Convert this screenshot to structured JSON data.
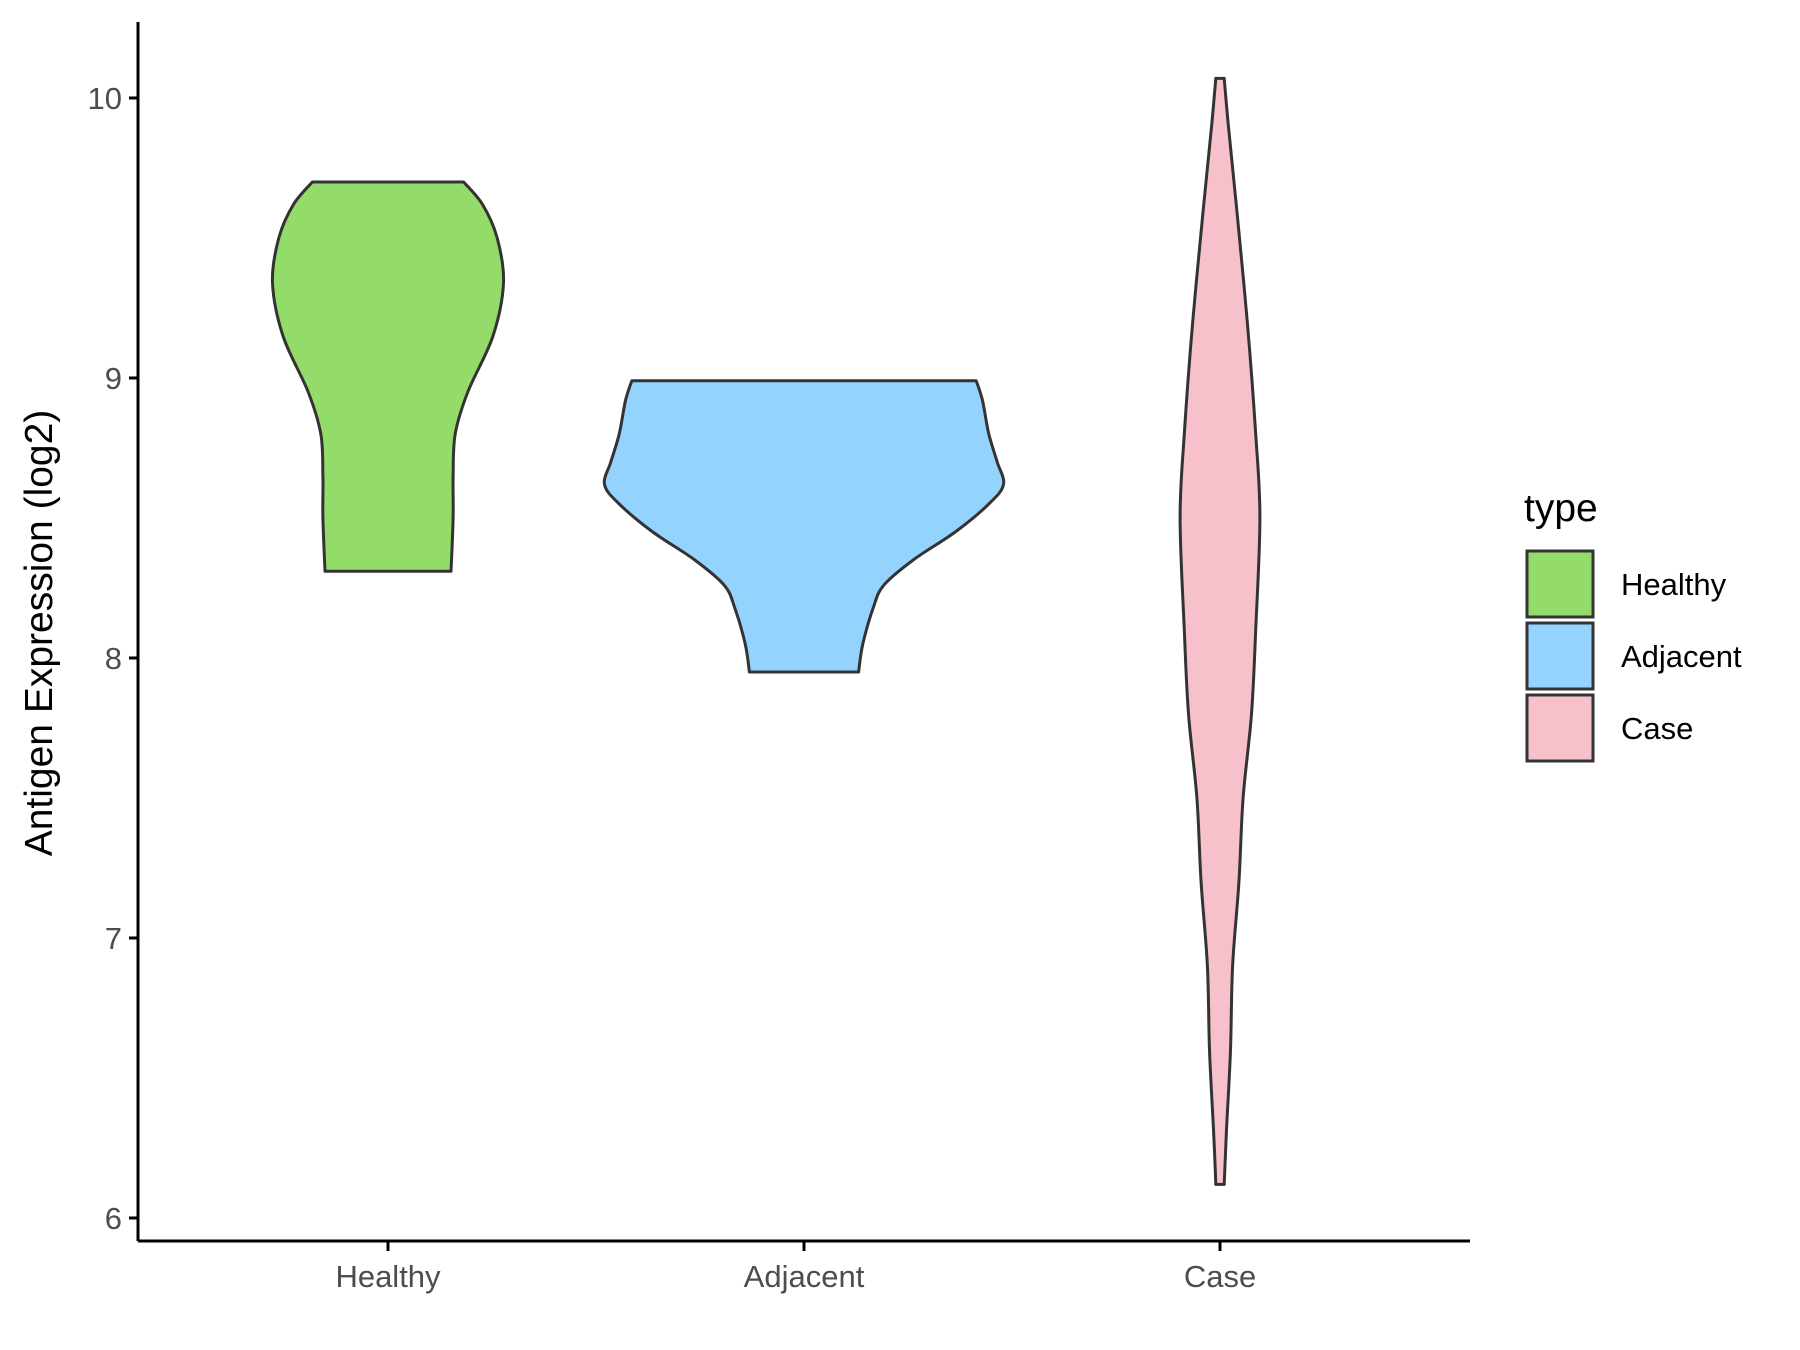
{
  "chart_data": {
    "type": "violin",
    "title": "",
    "xlabel": "",
    "ylabel": "Antigen Expression (log2)",
    "ylim": [
      5.92,
      10.26
    ],
    "yticks": [
      "6",
      "7",
      "8",
      "9",
      "10"
    ],
    "categories": [
      "Healthy",
      "Adjacent",
      "Case"
    ],
    "legend": {
      "title": "type",
      "position": "right",
      "entries": [
        "Healthy",
        "Adjacent",
        "Case"
      ]
    },
    "grid": false,
    "series": [
      {
        "name": "Healthy",
        "color": "#93dc69",
        "min": 8.31,
        "max": 9.7,
        "profile": [
          [
            9.7,
            0.36
          ],
          [
            9.62,
            0.45
          ],
          [
            9.5,
            0.52
          ],
          [
            9.34,
            0.55
          ],
          [
            9.15,
            0.5
          ],
          [
            8.95,
            0.38
          ],
          [
            8.8,
            0.32
          ],
          [
            8.65,
            0.31
          ],
          [
            8.5,
            0.31
          ],
          [
            8.31,
            0.3
          ]
        ]
      },
      {
        "name": "Adjacent",
        "color": "#94d3fd",
        "min": 7.95,
        "max": 8.99,
        "profile": [
          [
            8.99,
            0.82
          ],
          [
            8.92,
            0.85
          ],
          [
            8.8,
            0.88
          ],
          [
            8.7,
            0.92
          ],
          [
            8.62,
            0.95
          ],
          [
            8.55,
            0.88
          ],
          [
            8.45,
            0.72
          ],
          [
            8.35,
            0.52
          ],
          [
            8.26,
            0.38
          ],
          [
            8.18,
            0.33
          ],
          [
            8.05,
            0.28
          ],
          [
            7.95,
            0.26
          ]
        ]
      },
      {
        "name": "Case",
        "color": "#f7c1cc",
        "min": 6.12,
        "max": 10.07,
        "profile": [
          [
            10.07,
            0.02
          ],
          [
            9.9,
            0.04
          ],
          [
            9.6,
            0.08
          ],
          [
            9.2,
            0.13
          ],
          [
            8.8,
            0.17
          ],
          [
            8.5,
            0.19
          ],
          [
            8.1,
            0.17
          ],
          [
            7.8,
            0.15
          ],
          [
            7.5,
            0.11
          ],
          [
            7.2,
            0.09
          ],
          [
            6.9,
            0.06
          ],
          [
            6.6,
            0.05
          ],
          [
            6.3,
            0.03
          ],
          [
            6.12,
            0.02
          ]
        ]
      }
    ]
  }
}
